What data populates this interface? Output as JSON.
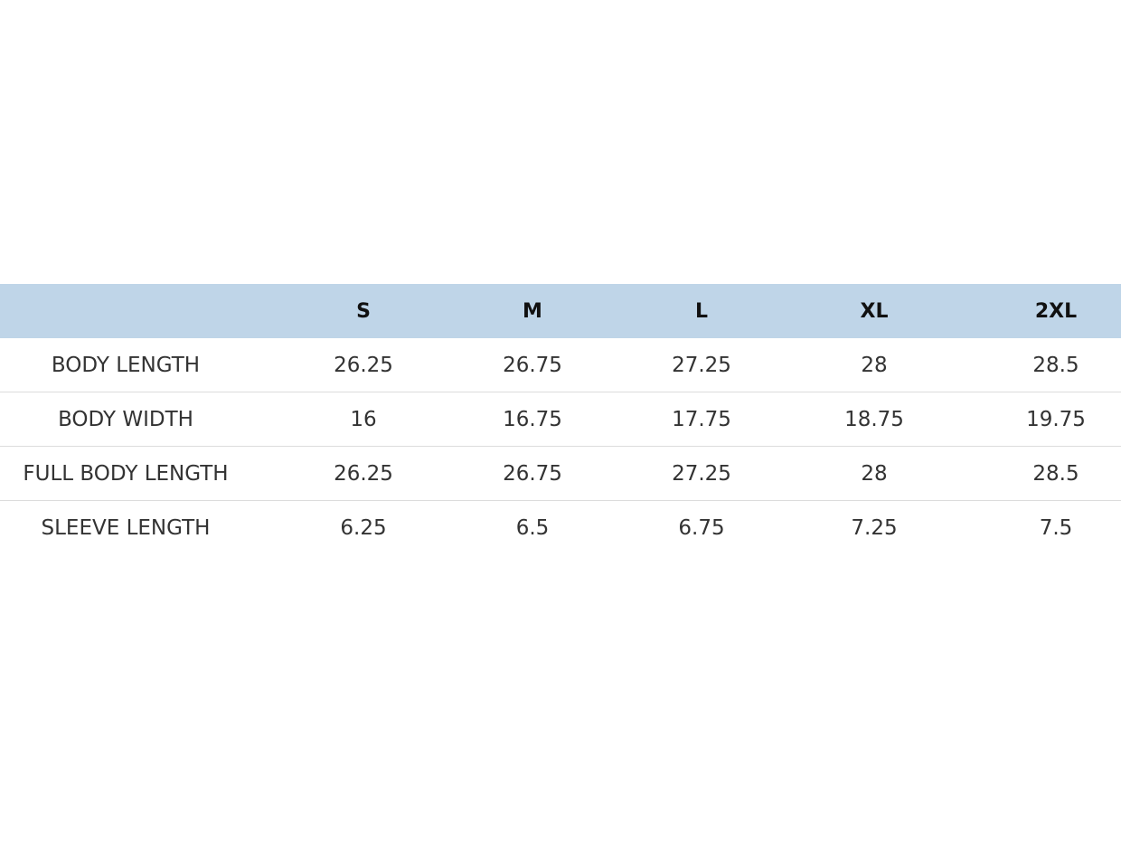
{
  "table": {
    "columns": [
      "S",
      "M",
      "L",
      "XL",
      "2XL"
    ],
    "rows": [
      [
        "BODY LENGTH",
        "26.25",
        "26.75",
        "27.25",
        "28",
        "28.5"
      ],
      [
        "BODY WIDTH",
        "16",
        "16.75",
        "17.75",
        "18.75",
        "19.75"
      ],
      [
        "FULL BODY LENGTH",
        "26.25",
        "26.75",
        "27.25",
        "28",
        "28.5"
      ],
      [
        "SLEEVE LENGTH",
        "6.25",
        "6.5",
        "6.75",
        "7.25",
        "7.5"
      ]
    ]
  }
}
